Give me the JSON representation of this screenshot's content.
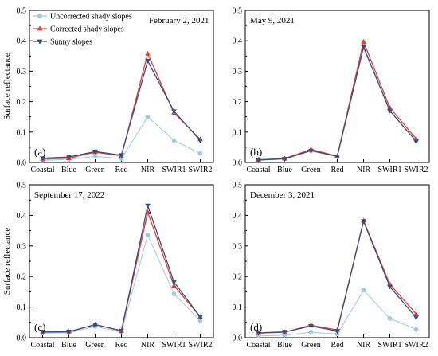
{
  "colors": {
    "uncorrected": "#9ecae1",
    "corrected": "#e0403a",
    "sunny": "#3b4e78"
  },
  "legend": {
    "uncorrected": "Uncorrected shady slopes",
    "corrected": "Corrected shady slopes",
    "sunny": "Sunny slopes"
  },
  "chart_data": [
    {
      "type": "line",
      "title": "February 2, 2021",
      "panel_label": "(a)",
      "categories": [
        "Coastal",
        "Blue",
        "Green",
        "Red",
        "NIR",
        "SWIR1",
        "SWIR2"
      ],
      "ylabel": "Surface reflectance",
      "ylim": [
        0,
        0.5
      ],
      "yticks": [
        "0.0",
        "0.1",
        "0.2",
        "0.3",
        "0.4",
        "0.5"
      ],
      "legend_position": "top-left",
      "series": [
        {
          "name": "Uncorrected shady slopes",
          "marker": "circle",
          "values": [
            0.007,
            0.01,
            0.02,
            0.013,
            0.15,
            0.072,
            0.03
          ]
        },
        {
          "name": "Corrected shady slopes",
          "marker": "triangle-up",
          "values": [
            0.011,
            0.014,
            0.034,
            0.022,
            0.358,
            0.163,
            0.076
          ]
        },
        {
          "name": "Sunny slopes",
          "marker": "triangle-down",
          "values": [
            0.014,
            0.018,
            0.036,
            0.024,
            0.334,
            0.168,
            0.072
          ]
        }
      ]
    },
    {
      "type": "line",
      "title": "May 9, 2021",
      "panel_label": "(b)",
      "categories": [
        "Coastal",
        "Blue",
        "Green",
        "Red",
        "NIR",
        "SWIR1",
        "SWIR2"
      ],
      "ylabel": "",
      "ylim": [
        0,
        0.5
      ],
      "yticks": [
        "0.0",
        "0.1",
        "0.2",
        "0.3",
        "0.4",
        "0.5"
      ],
      "series": [
        {
          "name": "Uncorrected shady slopes",
          "marker": "circle",
          "values": [
            0.008,
            0.011,
            0.038,
            0.02,
            0.375,
            0.17,
            0.07
          ]
        },
        {
          "name": "Corrected shady slopes",
          "marker": "triangle-up",
          "values": [
            0.009,
            0.013,
            0.043,
            0.021,
            0.397,
            0.18,
            0.078
          ]
        },
        {
          "name": "Sunny slopes",
          "marker": "triangle-down",
          "values": [
            0.008,
            0.012,
            0.039,
            0.02,
            0.38,
            0.17,
            0.07
          ]
        }
      ]
    },
    {
      "type": "line",
      "title": "September 17, 2022",
      "panel_label": "(c)",
      "categories": [
        "Coastal",
        "Blue",
        "Green",
        "Red",
        "NIR",
        "SWIR1",
        "SWIR2"
      ],
      "ylabel": "Surface reflectance",
      "ylim": [
        0,
        0.5
      ],
      "yticks": [
        "0.0",
        "0.1",
        "0.2",
        "0.3",
        "0.4",
        "0.5"
      ],
      "series": [
        {
          "name": "Uncorrected shady slopes",
          "marker": "circle",
          "values": [
            0.015,
            0.016,
            0.037,
            0.018,
            0.336,
            0.143,
            0.055
          ]
        },
        {
          "name": "Corrected shady slopes",
          "marker": "triangle-up",
          "values": [
            0.018,
            0.019,
            0.043,
            0.022,
            0.41,
            0.17,
            0.068
          ]
        },
        {
          "name": "Sunny slopes",
          "marker": "triangle-down",
          "values": [
            0.019,
            0.02,
            0.043,
            0.023,
            0.432,
            0.182,
            0.068
          ]
        }
      ]
    },
    {
      "type": "line",
      "title": "December 3, 2021",
      "panel_label": "(d)",
      "categories": [
        "Coastal",
        "Blue",
        "Green",
        "Red",
        "NIR",
        "SWIR1",
        "SWIR2"
      ],
      "ylabel": "",
      "ylim": [
        0,
        0.5
      ],
      "yticks": [
        "0.0",
        "0.1",
        "0.2",
        "0.3",
        "0.4",
        "0.5"
      ],
      "series": [
        {
          "name": "Uncorrected shady slopes",
          "marker": "circle",
          "values": [
            0.006,
            0.008,
            0.018,
            0.012,
            0.155,
            0.063,
            0.027
          ]
        },
        {
          "name": "Corrected shady slopes",
          "marker": "triangle-up",
          "values": [
            0.015,
            0.018,
            0.041,
            0.025,
            0.383,
            0.175,
            0.078
          ]
        },
        {
          "name": "Sunny slopes",
          "marker": "triangle-down",
          "values": [
            0.016,
            0.019,
            0.038,
            0.022,
            0.381,
            0.167,
            0.066
          ]
        }
      ]
    }
  ]
}
